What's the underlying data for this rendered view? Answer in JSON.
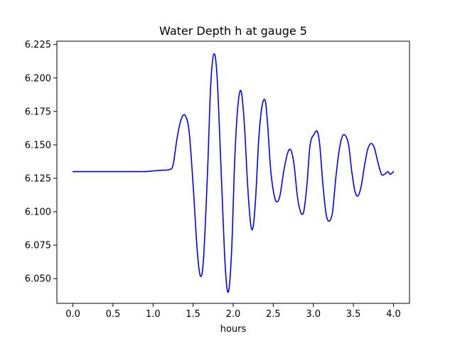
{
  "chart_data": {
    "type": "line",
    "title": "Water Depth h at gauge 5",
    "xlabel": "hours",
    "ylabel": "",
    "xlim": [
      -0.2,
      4.2
    ],
    "ylim": [
      6.0315,
      6.2275
    ],
    "xticks": [
      0.0,
      0.5,
      1.0,
      1.5,
      2.0,
      2.5,
      3.0,
      3.5,
      4.0
    ],
    "xtick_labels": [
      "0.0",
      "0.5",
      "1.0",
      "1.5",
      "2.0",
      "2.5",
      "3.0",
      "3.5",
      "4.0"
    ],
    "yticks": [
      6.05,
      6.075,
      6.1,
      6.125,
      6.15,
      6.175,
      6.2,
      6.225
    ],
    "ytick_labels": [
      "6.050",
      "6.075",
      "6.100",
      "6.125",
      "6.150",
      "6.175",
      "6.200",
      "6.225"
    ],
    "grid": false,
    "line_color": "#0000ff",
    "series": [
      {
        "x": [
          0.0,
          0.25,
          0.5,
          0.75,
          0.9,
          1.0,
          1.1,
          1.2,
          1.25,
          1.3,
          1.35,
          1.4,
          1.45,
          1.5,
          1.55,
          1.59,
          1.63,
          1.68,
          1.72,
          1.76,
          1.8,
          1.85,
          1.9,
          1.94,
          1.98,
          2.02,
          2.06,
          2.1,
          2.14,
          2.18,
          2.22,
          2.25,
          2.28,
          2.32,
          2.36,
          2.4,
          2.43,
          2.47,
          2.52,
          2.56,
          2.59,
          2.63,
          2.68,
          2.72,
          2.76,
          2.8,
          2.84,
          2.88,
          2.92,
          2.96,
          3.01,
          3.05,
          3.08,
          3.12,
          3.16,
          3.2,
          3.24,
          3.28,
          3.32,
          3.36,
          3.4,
          3.44,
          3.48,
          3.52,
          3.56,
          3.6,
          3.64,
          3.68,
          3.72,
          3.76,
          3.81,
          3.85,
          3.89,
          3.93,
          3.96,
          4.0
        ],
        "y": [
          6.13,
          6.13,
          6.13,
          6.13,
          6.13,
          6.1305,
          6.131,
          6.1315,
          6.135,
          6.155,
          6.169,
          6.172,
          6.16,
          6.12,
          6.072,
          6.052,
          6.065,
          6.13,
          6.195,
          6.218,
          6.2,
          6.13,
          6.06,
          6.04,
          6.07,
          6.14,
          6.18,
          6.19,
          6.165,
          6.12,
          6.09,
          6.089,
          6.11,
          6.155,
          6.179,
          6.183,
          6.165,
          6.13,
          6.11,
          6.108,
          6.114,
          6.13,
          6.144,
          6.146,
          6.135,
          6.112,
          6.1,
          6.1,
          6.12,
          6.15,
          6.158,
          6.16,
          6.15,
          6.12,
          6.098,
          6.093,
          6.1,
          6.125,
          6.145,
          6.156,
          6.157,
          6.15,
          6.13,
          6.115,
          6.112,
          6.12,
          6.135,
          6.147,
          6.151,
          6.148,
          6.136,
          6.128,
          6.128,
          6.13,
          6.128,
          6.13
        ]
      }
    ]
  }
}
